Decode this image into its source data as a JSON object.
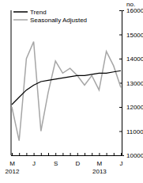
{
  "chart_data": {
    "type": "line",
    "y_label": "no.",
    "categories": [
      "M\n2012",
      null,
      null,
      "J",
      null,
      null,
      "S",
      null,
      null,
      "D",
      null,
      null,
      "M\n2013",
      null,
      null,
      "J"
    ],
    "series": [
      {
        "name": "Trend",
        "color": "#000000",
        "line_style": "solid",
        "values": [
          12100,
          12400,
          12700,
          12900,
          13050,
          13100,
          13150,
          13200,
          13250,
          13300,
          13300,
          13350,
          13400,
          13400,
          13450,
          13500
        ]
      },
      {
        "name": "Seasonally Adjusted",
        "color": "#a6a6a6",
        "line_style": "solid",
        "values": [
          12000,
          10600,
          14000,
          14700,
          11000,
          12600,
          13900,
          13400,
          13600,
          13300,
          12900,
          13300,
          12700,
          14300,
          13700,
          12800
        ]
      }
    ],
    "ylim": [
      10000,
      16000
    ],
    "yticks": [
      10000,
      11000,
      12000,
      13000,
      14000,
      15000,
      16000
    ],
    "legend": "top-left",
    "grid": false
  }
}
